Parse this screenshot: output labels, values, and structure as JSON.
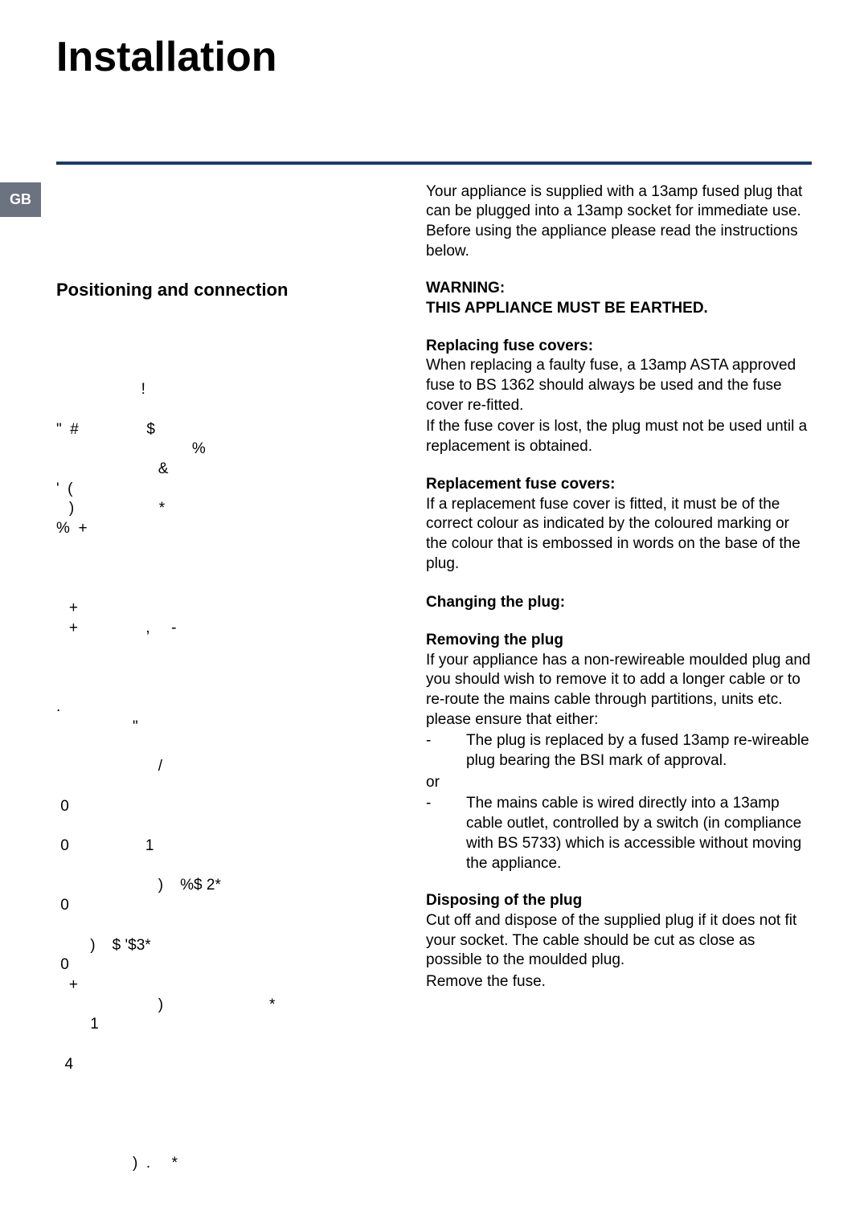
{
  "page": {
    "badge": "GB",
    "title": "Installation",
    "divider_color": "#1a3a6e"
  },
  "left": {
    "heading": "Positioning and connection",
    "garbled_block": "\n\n\n                    !\n\n\"  #                $\n                                %\n                        &\n'  (\n   )                    *\n%  +\n\n\n\n   +\n   +                ,     -\n\n\n\n.\n                  \"\n\n                        /\n\n 0\n\n 0                  1\n\n                        )    %$ 2*\n 0\n\n        )    $ '$3*\n 0\n   +\n                        )                         *\n        1\n\n  4\n\n\n\n\n                  )  .     *"
  },
  "right": {
    "intro": "Your appliance is supplied with a 13amp fused plug that can be plugged into a 13amp socket for immediate use. Before using the appliance please read the instructions below.",
    "warning_label": "WARNING:",
    "warning_text": "THIS APPLIANCE MUST BE EARTHED.",
    "replacing_head": "Replacing fuse covers:",
    "replacing_body1": "When replacing a faulty fuse, a 13amp ASTA approved fuse to BS 1362 should always be used and the fuse cover re-fitted.",
    "replacing_body2": "If the fuse cover is lost, the plug must not be used until a replacement is obtained.",
    "replacement_head": "Replacement fuse covers:",
    "replacement_body": "If a replacement fuse cover is fitted, it must be of the correct colour as indicated by the coloured marking or the colour that is embossed in words on the base of the plug.",
    "changing_head": "Changing the plug:",
    "removing_head": "Removing the plug",
    "removing_body": "If your appliance has a non-rewireable moulded plug and you should wish to remove it to add a longer cable or to re-route the mains cable through partitions, units etc. please ensure that either:",
    "bullet1": "The plug is replaced by a fused 13amp re-wireable plug bearing the BSI mark of approval.",
    "or_text": "or",
    "bullet2": "The mains cable is wired directly into a 13amp cable outlet, controlled by a switch (in compliance with BS 5733) which is accessible without moving the appliance.",
    "disposing_head": "Disposing of the plug",
    "disposing_body1": "Cut off and dispose of the supplied plug if it does not fit your socket. The cable should be cut as close as possible to the moulded plug.",
    "disposing_body2": "Remove the fuse."
  }
}
